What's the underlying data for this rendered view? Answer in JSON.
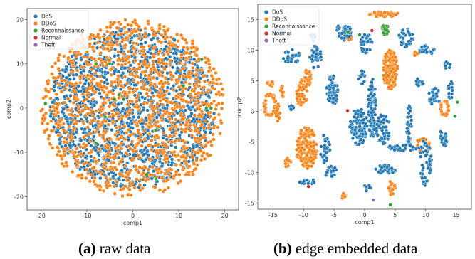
{
  "colors": {
    "DoS": "#1f77b4",
    "DDoS": "#ff7f0e",
    "Reconnaissance": "#2ca02c",
    "Normal": "#d62728",
    "Theft": "#9467bd"
  },
  "captions": [
    {
      "letter": "(a)",
      "text": " raw data"
    },
    {
      "letter": "(b)",
      "text": " edge embedded data"
    }
  ],
  "chart_data": [
    {
      "type": "scatter",
      "title": "",
      "xlabel": "comp1",
      "ylabel": "comp2",
      "xlim": [
        -23,
        23
      ],
      "ylim": [
        -23,
        22.5
      ],
      "xticks": [
        -20,
        -10,
        0,
        10,
        20
      ],
      "yticks": [
        -20,
        -10,
        0,
        10,
        20
      ],
      "legend_position": "top-left",
      "legend": [
        "DoS",
        "DDoS",
        "Reconnaissance",
        "Normal",
        "Theft"
      ],
      "series": [
        {
          "name": "DoS",
          "clusters": [
            {
              "cx": 0,
              "cy": 0,
              "rx": 18,
              "ry": 18,
              "n": 1500,
              "shape": "disc"
            }
          ]
        },
        {
          "name": "DDoS",
          "clusters": [
            {
              "cx": 0,
              "cy": 0,
              "rx": 20,
              "ry": 20,
              "n": 1300,
              "shape": "disc"
            }
          ]
        },
        {
          "name": "Reconnaissance",
          "points": [
            [
              -5,
              10
            ],
            [
              -8,
              10
            ],
            [
              -4,
              2
            ],
            [
              -3,
              3
            ],
            [
              -2,
              2
            ],
            [
              -6,
              -2
            ],
            [
              -8,
              -8
            ],
            [
              5,
              -5
            ],
            [
              3,
              -15
            ],
            [
              5,
              -16
            ],
            [
              15,
              11
            ],
            [
              17,
              0
            ],
            [
              16,
              0
            ],
            [
              -19,
              1
            ],
            [
              11,
              5
            ]
          ]
        },
        {
          "name": "Normal",
          "points": []
        },
        {
          "name": "Theft",
          "points": []
        }
      ]
    },
    {
      "type": "scatter",
      "title": "",
      "xlabel": "comp1",
      "ylabel": "comp2",
      "xlim": [
        -17.5,
        17.5
      ],
      "ylim": [
        -16,
        17.5
      ],
      "xticks": [
        -15,
        -10,
        -5,
        0,
        5,
        10,
        15
      ],
      "yticks": [
        -15,
        -10,
        -5,
        0,
        5,
        10,
        15
      ],
      "legend_position": "top-left",
      "legend": [
        "DoS",
        "DDoS",
        "Reconnaissance",
        "Normal",
        "Theft"
      ],
      "series": [
        {
          "name": "DDoS",
          "clusters": [
            {
              "cx": -9.5,
              "cy": -6,
              "rx": 1.7,
              "ry": 3.4,
              "n": 170,
              "shape": "disc"
            },
            {
              "cx": 4.2,
              "cy": 6.8,
              "rx": 1.2,
              "ry": 3.2,
              "n": 130,
              "shape": "disc"
            },
            {
              "cx": -15.5,
              "cy": 1,
              "rx": 1.0,
              "ry": 2.0,
              "n": 45,
              "shape": "ring"
            },
            {
              "cx": -14.2,
              "cy": -0.4,
              "rx": 0.4,
              "ry": 1.6,
              "n": 18,
              "shape": "disc"
            },
            {
              "cx": -13.5,
              "cy": 3.2,
              "rx": 0.3,
              "ry": 0.9,
              "n": 10,
              "shape": "disc"
            },
            {
              "cx": -10.3,
              "cy": 3,
              "rx": 0.9,
              "ry": 2.2,
              "n": 45,
              "shape": "disc"
            },
            {
              "cx": -9.3,
              "cy": 5.5,
              "rx": 0.6,
              "ry": 1.4,
              "n": 25,
              "shape": "disc"
            },
            {
              "cx": 3.2,
              "cy": 15.8,
              "rx": 2.5,
              "ry": 0.5,
              "n": 50,
              "shape": "disc"
            },
            {
              "cx": -2.5,
              "cy": 12.5,
              "rx": 0.4,
              "ry": 1.0,
              "n": 15,
              "shape": "disc"
            },
            {
              "cx": 9.6,
              "cy": -5.5,
              "rx": 1.2,
              "ry": 1.2,
              "n": 24,
              "shape": "ring"
            },
            {
              "cx": 13.1,
              "cy": 0.5,
              "rx": 0.7,
              "ry": 1.3,
              "n": 28,
              "shape": "ring"
            },
            {
              "cx": 4.5,
              "cy": -12.5,
              "rx": 0.6,
              "ry": 1.2,
              "n": 18,
              "shape": "disc"
            },
            {
              "cx": -3.5,
              "cy": -13.8,
              "rx": 0.5,
              "ry": 0.5,
              "n": 8,
              "shape": "disc"
            },
            {
              "cx": -15.3,
              "cy": 4.6,
              "rx": 0.8,
              "ry": 0.5,
              "n": 15,
              "shape": "disc"
            },
            {
              "cx": -12.5,
              "cy": -8.5,
              "rx": 0.5,
              "ry": 1.0,
              "n": 12,
              "shape": "disc"
            },
            {
              "cx": 8.5,
              "cy": 9.5,
              "rx": 0.5,
              "ry": 0.5,
              "n": 8,
              "shape": "disc"
            }
          ]
        },
        {
          "name": "DoS",
          "clusters": [
            {
              "cx": 1.2,
              "cy": 0.5,
              "rx": 0.7,
              "ry": 5.0,
              "n": 90,
              "shape": "disc"
            },
            {
              "cx": -1.0,
              "cy": -2.5,
              "rx": 1.5,
              "ry": 3.0,
              "n": 110,
              "shape": "disc"
            },
            {
              "cx": 3.0,
              "cy": -3,
              "rx": 1.2,
              "ry": 2.5,
              "n": 60,
              "shape": "disc"
            },
            {
              "cx": 6.5,
              "cy": -6,
              "rx": 3.0,
              "ry": 0.5,
              "n": 45,
              "shape": "disc"
            },
            {
              "cx": 10.0,
              "cy": -8.5,
              "rx": 1.0,
              "ry": 4.0,
              "n": 45,
              "shape": "disc"
            },
            {
              "cx": 7.3,
              "cy": -2.5,
              "rx": 0.4,
              "ry": 3.5,
              "n": 35,
              "shape": "disc"
            },
            {
              "cx": 3.5,
              "cy": -9.5,
              "rx": 1.8,
              "ry": 0.7,
              "n": 35,
              "shape": "disc"
            },
            {
              "cx": -5.3,
              "cy": 3.5,
              "rx": 1.0,
              "ry": 2.5,
              "n": 50,
              "shape": "disc"
            },
            {
              "cx": -8.0,
              "cy": 9.0,
              "rx": 1.0,
              "ry": 2.0,
              "n": 35,
              "shape": "disc"
            },
            {
              "cx": -3.5,
              "cy": 13.0,
              "rx": 1.3,
              "ry": 1.4,
              "n": 35,
              "shape": "disc"
            },
            {
              "cx": 0.3,
              "cy": 11.0,
              "rx": 1.0,
              "ry": 1.6,
              "n": 30,
              "shape": "disc"
            },
            {
              "cx": 6.8,
              "cy": 12.0,
              "rx": 1.2,
              "ry": 1.5,
              "n": 30,
              "shape": "disc"
            },
            {
              "cx": 10.2,
              "cy": 10.0,
              "rx": 1.2,
              "ry": 0.8,
              "n": 25,
              "shape": "disc"
            },
            {
              "cx": 11.5,
              "cy": 2.5,
              "rx": 1.0,
              "ry": 1.5,
              "n": 25,
              "shape": "disc"
            },
            {
              "cx": 14.0,
              "cy": 3.5,
              "rx": 0.5,
              "ry": 1.5,
              "n": 18,
              "shape": "disc"
            },
            {
              "cx": -12.0,
              "cy": 9.0,
              "rx": 1.5,
              "ry": 1.2,
              "n": 25,
              "shape": "disc"
            },
            {
              "cx": -14.0,
              "cy": 13.0,
              "rx": 1.0,
              "ry": 0.7,
              "n": 15,
              "shape": "disc"
            },
            {
              "cx": -6.5,
              "cy": -6.0,
              "rx": 0.8,
              "ry": 2.5,
              "n": 30,
              "shape": "disc"
            },
            {
              "cx": -5.5,
              "cy": -10.0,
              "rx": 1.0,
              "ry": 1.0,
              "n": 20,
              "shape": "disc"
            },
            {
              "cx": -9.5,
              "cy": -11.5,
              "rx": 1.5,
              "ry": 0.5,
              "n": 15,
              "shape": "disc"
            },
            {
              "cx": 12.8,
              "cy": -4.5,
              "rx": 0.8,
              "ry": 1.4,
              "n": 18,
              "shape": "disc"
            },
            {
              "cx": 9.0,
              "cy": 4.5,
              "rx": 0.6,
              "ry": 1.0,
              "n": 12,
              "shape": "disc"
            },
            {
              "cx": -0.5,
              "cy": 5.5,
              "rx": 0.6,
              "ry": 1.2,
              "n": 15,
              "shape": "disc"
            },
            {
              "cx": 13.5,
              "cy": 7.5,
              "rx": 0.6,
              "ry": 0.6,
              "n": 10,
              "shape": "disc"
            },
            {
              "cx": -8.5,
              "cy": 12.0,
              "rx": 0.5,
              "ry": 0.8,
              "n": 10,
              "shape": "disc"
            },
            {
              "cx": 0.5,
              "cy": -12.5,
              "rx": 0.6,
              "ry": 0.6,
              "n": 8,
              "shape": "disc"
            },
            {
              "cx": -12.0,
              "cy": 0.5,
              "rx": 0.4,
              "ry": 0.6,
              "n": 6,
              "shape": "disc"
            }
          ]
        },
        {
          "name": "Reconnaissance",
          "clusters": [
            {
              "cx": 3.4,
              "cy": 13.3,
              "rx": 0.6,
              "ry": 0.8,
              "n": 22,
              "shape": "disc"
            }
          ],
          "points": [
            [
              -2.8,
              12.9
            ],
            [
              14.8,
              -0.8
            ],
            [
              15.2,
              1.5
            ],
            [
              -0.8,
              12.5
            ],
            [
              4.2,
              -15.3
            ]
          ]
        },
        {
          "name": "Normal",
          "points": [
            [
              -2.8,
              0.1
            ],
            [
              -9.2,
              -12.3
            ],
            [
              1.2,
              13.2
            ]
          ]
        },
        {
          "name": "Theft",
          "points": [
            [
              1.4,
              -14.5
            ]
          ]
        }
      ]
    }
  ]
}
